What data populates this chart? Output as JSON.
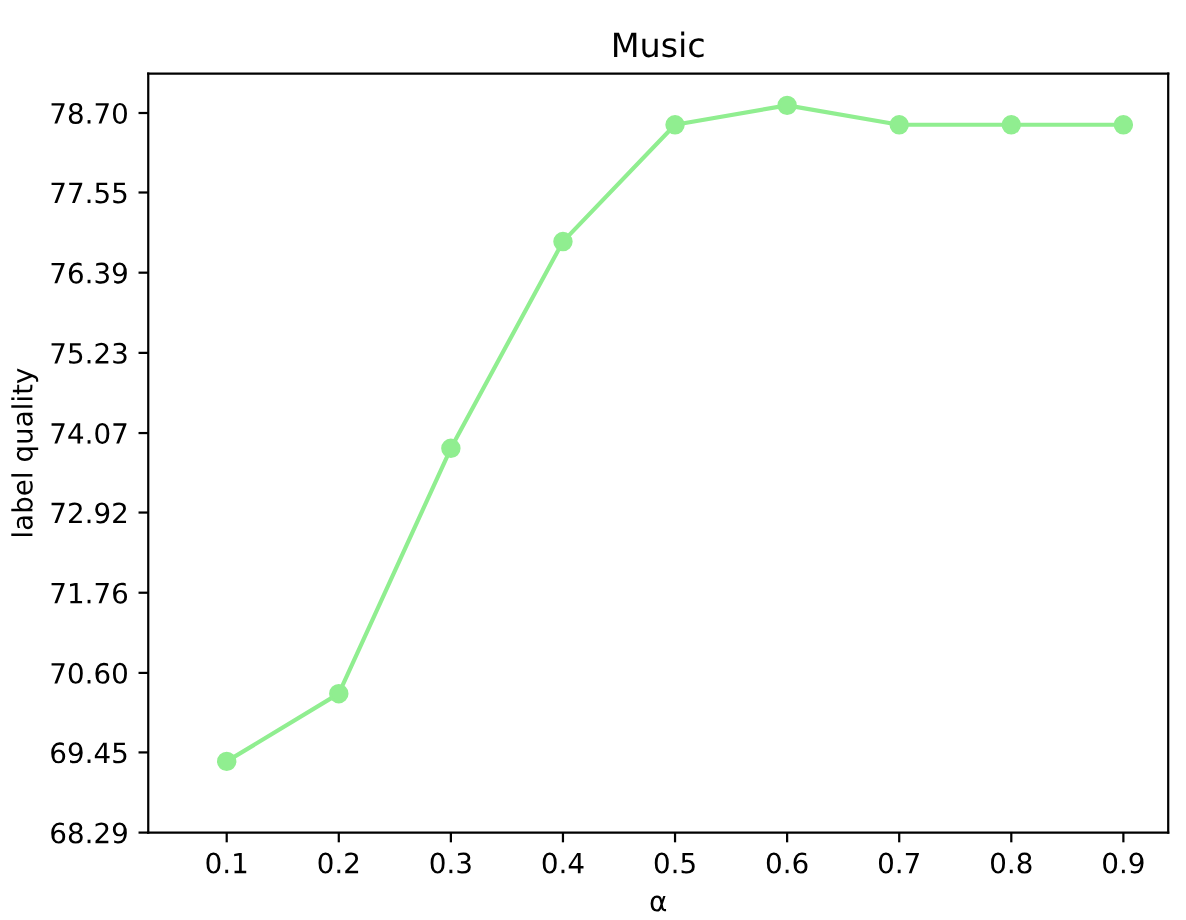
{
  "chart_data": {
    "type": "line",
    "title": "Music",
    "xlabel": "α",
    "ylabel": "label quality",
    "x": [
      0.1,
      0.2,
      0.3,
      0.4,
      0.5,
      0.6,
      0.7,
      0.8,
      0.9
    ],
    "series": [
      {
        "color": "#90ee90",
        "values": [
          69.32,
          70.3,
          73.85,
          76.84,
          78.53,
          78.81,
          78.53,
          78.53,
          78.53
        ]
      }
    ],
    "marker": "circle",
    "line_style": "solid",
    "grid": false,
    "legend": false,
    "xlim": [
      0.03,
      0.94
    ],
    "xticks": [
      0.1,
      0.2,
      0.3,
      0.4,
      0.5,
      0.6,
      0.7,
      0.8,
      0.9
    ],
    "ylim": [
      68.29,
      79.27
    ],
    "yticks": [
      {
        "value": 68.29,
        "label": "68.29"
      },
      {
        "value": 69.45,
        "label": "69.45"
      },
      {
        "value": 70.6,
        "label": "70.60"
      },
      {
        "value": 71.76,
        "label": "71.76"
      },
      {
        "value": 72.92,
        "label": "72.92"
      },
      {
        "value": 74.07,
        "label": "74.07"
      },
      {
        "value": 75.23,
        "label": "75.23"
      },
      {
        "value": 76.39,
        "label": "76.39"
      },
      {
        "value": 77.55,
        "label": "77.55"
      },
      {
        "value": 78.7,
        "label": "78.70"
      }
    ]
  }
}
